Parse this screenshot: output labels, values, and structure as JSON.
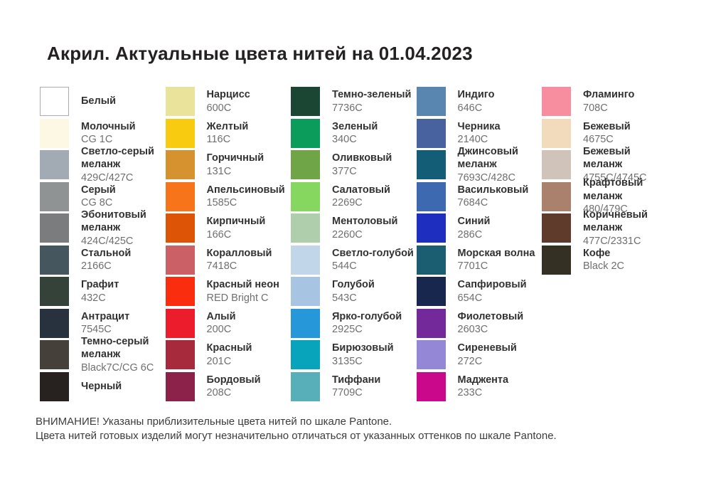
{
  "title": "Акрил. Актуальные цвета нитей на 01.04.2023",
  "palette": {
    "columns": [
      {
        "items": [
          {
            "name": "Белый",
            "code": "",
            "color": "#FFFFFF",
            "border": true
          },
          {
            "name": "Молочный",
            "code": "CG 1C",
            "color": "#FDF8E4",
            "border": false
          },
          {
            "name": "Светло-серый\nмеланж",
            "code": "429C/427C",
            "color": "#A2ABB3",
            "border": false
          },
          {
            "name": "Серый",
            "code": "CG 8C",
            "color": "#8F9394",
            "border": false
          },
          {
            "name": "Эбонитовый\nмеланж",
            "code": "424C/425C",
            "color": "#7A7C7D",
            "border": false
          },
          {
            "name": "Стальной",
            "code": "2166C",
            "color": "#46565E",
            "border": false
          },
          {
            "name": "Графит",
            "code": "432C",
            "color": "#344239",
            "border": false
          },
          {
            "name": "Антрацит",
            "code": "7545C",
            "color": "#27323E",
            "border": false
          },
          {
            "name": "Темно-серый\nмеланж",
            "code": "Black7C/CG 6C",
            "color": "#46403A",
            "border": false
          },
          {
            "name": "Черный",
            "code": "",
            "color": "#27221F",
            "border": false
          }
        ]
      },
      {
        "items": [
          {
            "name": "Нарцисс",
            "code": "600C",
            "color": "#E9E39C",
            "border": false
          },
          {
            "name": "Желтый",
            "code": "116C",
            "color": "#F8CA10",
            "border": false
          },
          {
            "name": "Горчичный",
            "code": "131C",
            "color": "#D6922E",
            "border": false
          },
          {
            "name": "Апельсиновый",
            "code": "1585C",
            "color": "#F8741A",
            "border": false
          },
          {
            "name": "Кирпичный",
            "code": "166C",
            "color": "#DD5406",
            "border": false
          },
          {
            "name": "Коралловый",
            "code": "7418C",
            "color": "#CC6067",
            "border": false
          },
          {
            "name": "Красный неон",
            "code": "RED Bright C",
            "color": "#FB2D0F",
            "border": false
          },
          {
            "name": "Алый",
            "code": "200C",
            "color": "#EC1C2C",
            "border": false
          },
          {
            "name": "Красный",
            "code": "201C",
            "color": "#A62A3C",
            "border": false
          },
          {
            "name": "Бордовый",
            "code": "208C",
            "color": "#8C2149",
            "border": false
          }
        ]
      },
      {
        "items": [
          {
            "name": "Темно-зеленый",
            "code": "7736C",
            "color": "#1C4634",
            "border": false
          },
          {
            "name": "Зеленый",
            "code": "340C",
            "color": "#0B9C5C",
            "border": false
          },
          {
            "name": "Оливковый",
            "code": "377C",
            "color": "#6FA447",
            "border": false
          },
          {
            "name": "Салатовый",
            "code": "2269C",
            "color": "#86D75F",
            "border": false
          },
          {
            "name": "Ментоловый",
            "code": "2260C",
            "color": "#AFCEAC",
            "border": false
          },
          {
            "name": "Светло-голубой",
            "code": "544C",
            "color": "#C2D6EA",
            "border": false
          },
          {
            "name": "Голубой",
            "code": "543C",
            "color": "#A7C4E2",
            "border": false
          },
          {
            "name": "Ярко-голубой",
            "code": "2925C",
            "color": "#2698D9",
            "border": false
          },
          {
            "name": "Бирюзовый",
            "code": "3135C",
            "color": "#08A4BC",
            "border": false
          },
          {
            "name": "Тиффани",
            "code": "7709C",
            "color": "#58AFB9",
            "border": false
          }
        ]
      },
      {
        "items": [
          {
            "name": "Индиго",
            "code": "646C",
            "color": "#5886B1",
            "border": false
          },
          {
            "name": "Черника",
            "code": "2140C",
            "color": "#47629F",
            "border": false
          },
          {
            "name": "Джинсовый\nмеланж",
            "code": "7693C/428C",
            "color": "#145D76",
            "border": false
          },
          {
            "name": "Васильковый",
            "code": "7684C",
            "color": "#3C69AF",
            "border": false
          },
          {
            "name": "Синий",
            "code": "286C",
            "color": "#1E2EBF",
            "border": false
          },
          {
            "name": "Морская волна",
            "code": "7701C",
            "color": "#1B5E72",
            "border": false
          },
          {
            "name": "Сапфировый",
            "code": "654C",
            "color": "#17274E",
            "border": false
          },
          {
            "name": "Фиолетовый",
            "code": "2603C",
            "color": "#73299A",
            "border": false
          },
          {
            "name": "Сиреневый",
            "code": "272C",
            "color": "#9487D6",
            "border": false
          },
          {
            "name": "Маджента",
            "code": "233C",
            "color": "#C9088C",
            "border": false
          }
        ]
      },
      {
        "items": [
          {
            "name": "Фламинго",
            "code": "708C",
            "color": "#F78E9F",
            "border": false
          },
          {
            "name": "Бежевый",
            "code": "4675C",
            "color": "#F2DABD",
            "border": false
          },
          {
            "name": "Бежевый\nмеланж",
            "code": "4755C/4745C",
            "color": "#D0C3BA",
            "border": false
          },
          {
            "name": "Крафтовый меланж",
            "code": "480/479C",
            "color": "#A9816C",
            "border": false
          },
          {
            "name": "Коричневый\nмеланж",
            "code": "477C/2331C",
            "color": "#5F3B2C",
            "border": false
          },
          {
            "name": "Кофе",
            "code": "Black 2C",
            "color": "#343023",
            "border": false
          }
        ]
      }
    ]
  },
  "footer": {
    "lines": [
      "ВНИМАНИЕ! Указаны приблизительные цвета нитей по шкале Pantone.",
      "Цвета нитей готовых изделий могут незначительно отличаться от указанных оттенков по шкале Pantone."
    ]
  }
}
